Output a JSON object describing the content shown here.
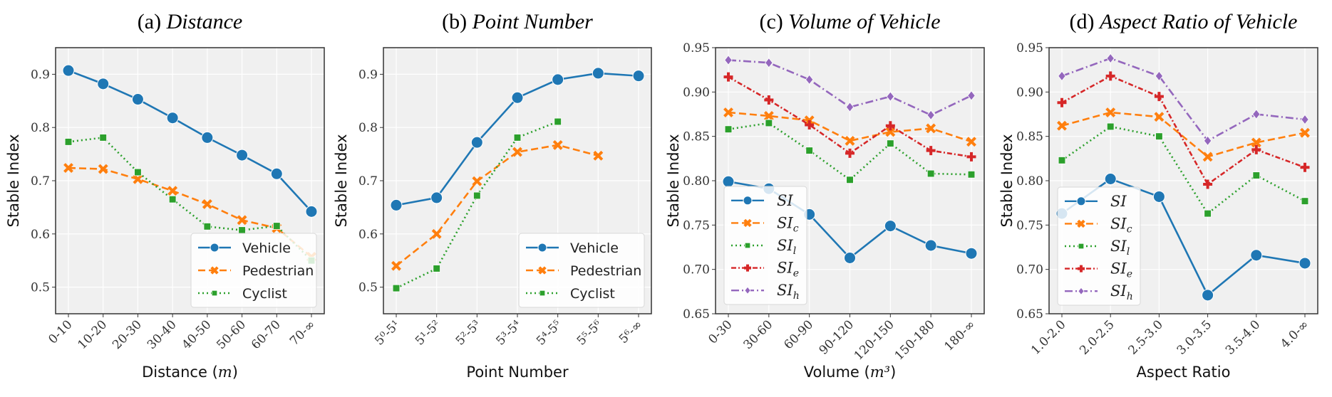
{
  "figure": {
    "ylabel_common": "Stable Index"
  },
  "chart_data": [
    {
      "id": "a",
      "type": "line",
      "title_prefix": "(a)",
      "title_main": "Distance",
      "xlabel": "Distance",
      "xlabel_math": "m",
      "ylabel": "Stable Index",
      "categories": [
        "0-10",
        "10-20",
        "20-30",
        "30-40",
        "40-50",
        "50-60",
        "60-70",
        "70-∞"
      ],
      "ylim": [
        0.45,
        0.95
      ],
      "yticks": [
        0.5,
        0.6,
        0.7,
        0.8,
        0.9
      ],
      "ytick_labels": [
        "0.5",
        "0.6",
        "0.7",
        "0.8",
        "0.9"
      ],
      "grid": true,
      "legend_position": "lower-right",
      "series": [
        {
          "name": "Vehicle",
          "color": "#1f77b4",
          "style": "solid",
          "marker": "circle",
          "values": [
            0.907,
            0.882,
            0.853,
            0.818,
            0.781,
            0.748,
            0.713,
            0.642
          ]
        },
        {
          "name": "Pedestrian",
          "color": "#ff7f0e",
          "style": "dashed",
          "marker": "x",
          "values": [
            0.724,
            0.722,
            0.703,
            0.681,
            0.656,
            0.626,
            0.611,
            0.557
          ]
        },
        {
          "name": "Cyclist",
          "color": "#2ca02c",
          "style": "dotted",
          "marker": "square",
          "values": [
            0.773,
            0.781,
            0.716,
            0.665,
            0.614,
            0.607,
            0.615,
            0.55
          ]
        }
      ]
    },
    {
      "id": "b",
      "type": "line",
      "title_prefix": "(b)",
      "title_main": "Point Number",
      "xlabel": "Point Number",
      "xlabel_math": "",
      "ylabel": "Stable Index",
      "categories": [
        "5⁰-5¹",
        "5¹-5²",
        "5²-5³",
        "5³-5⁴",
        "5⁴-5⁵",
        "5⁵-5⁶",
        "5⁶-∞"
      ],
      "ylim": [
        0.45,
        0.95
      ],
      "yticks": [
        0.5,
        0.6,
        0.7,
        0.8,
        0.9
      ],
      "ytick_labels": [
        "0.5",
        "0.6",
        "0.7",
        "0.8",
        "0.9"
      ],
      "grid": true,
      "legend_position": "lower-right",
      "series": [
        {
          "name": "Vehicle",
          "color": "#1f77b4",
          "style": "solid",
          "marker": "circle",
          "values": [
            0.654,
            0.668,
            0.772,
            0.856,
            0.89,
            0.902,
            0.897
          ]
        },
        {
          "name": "Pedestrian",
          "color": "#ff7f0e",
          "style": "dashed",
          "marker": "x",
          "values": [
            0.54,
            0.6,
            0.699,
            0.754,
            0.767,
            0.747,
            null
          ]
        },
        {
          "name": "Cyclist",
          "color": "#2ca02c",
          "style": "dotted",
          "marker": "square",
          "values": [
            0.498,
            0.535,
            0.672,
            0.781,
            0.811,
            null,
            null
          ]
        }
      ]
    },
    {
      "id": "c",
      "type": "line",
      "title_prefix": "(c)",
      "title_main": "Volume of Vehicle",
      "xlabel": "Volume",
      "xlabel_math": "m³",
      "ylabel": "Stable Index",
      "categories": [
        "0-30",
        "30-60",
        "60-90",
        "90-120",
        "120-150",
        "150-180",
        "180-∞"
      ],
      "ylim": [
        0.65,
        0.95
      ],
      "yticks": [
        0.65,
        0.7,
        0.75,
        0.8,
        0.85,
        0.9,
        0.95
      ],
      "ytick_labels": [
        "0.65",
        "0.70",
        "0.75",
        "0.80",
        "0.85",
        "0.90",
        "0.95"
      ],
      "grid": true,
      "legend_position": "lower-left",
      "series": [
        {
          "name": "SI",
          "sub": "",
          "color": "#1f77b4",
          "style": "solid",
          "marker": "circle",
          "values": [
            0.799,
            0.791,
            0.762,
            0.713,
            0.749,
            0.727,
            0.718
          ]
        },
        {
          "name": "SI",
          "sub": "c",
          "color": "#ff7f0e",
          "style": "dashed",
          "marker": "x",
          "values": [
            0.877,
            0.873,
            0.868,
            0.845,
            0.855,
            0.859,
            0.844
          ]
        },
        {
          "name": "SI",
          "sub": "l",
          "color": "#2ca02c",
          "style": "dotted",
          "marker": "square",
          "values": [
            0.858,
            0.865,
            0.834,
            0.801,
            0.842,
            0.808,
            0.807
          ]
        },
        {
          "name": "SI",
          "sub": "e",
          "color": "#d62728",
          "style": "dashdotdot",
          "marker": "plus",
          "values": [
            0.917,
            0.891,
            0.863,
            0.831,
            0.862,
            0.834,
            0.827
          ]
        },
        {
          "name": "SI",
          "sub": "h",
          "color": "#9467bd",
          "style": "dashdot",
          "marker": "diamond",
          "values": [
            0.936,
            0.933,
            0.914,
            0.883,
            0.895,
            0.874,
            0.896
          ]
        }
      ]
    },
    {
      "id": "d",
      "type": "line",
      "title_prefix": "(d)",
      "title_main": "Aspect Ratio of Vehicle",
      "xlabel": "Aspect Ratio",
      "xlabel_math": "",
      "ylabel": "Stable Index",
      "categories": [
        "1.0-2.0",
        "2.0-2.5",
        "2.5-3.0",
        "3.0-3.5",
        "3.5-4.0",
        "4.0-∞"
      ],
      "ylim": [
        0.65,
        0.95
      ],
      "yticks": [
        0.65,
        0.7,
        0.75,
        0.8,
        0.85,
        0.9,
        0.95
      ],
      "ytick_labels": [
        "0.65",
        "0.70",
        "0.75",
        "0.80",
        "0.85",
        "0.90",
        "0.95"
      ],
      "grid": true,
      "legend_position": "lower-left",
      "series": [
        {
          "name": "SI",
          "sub": "",
          "color": "#1f77b4",
          "style": "solid",
          "marker": "circle",
          "values": [
            0.763,
            0.802,
            0.782,
            0.671,
            0.716,
            0.707
          ]
        },
        {
          "name": "SI",
          "sub": "c",
          "color": "#ff7f0e",
          "style": "dashed",
          "marker": "x",
          "values": [
            0.862,
            0.877,
            0.872,
            0.827,
            0.843,
            0.854
          ]
        },
        {
          "name": "SI",
          "sub": "l",
          "color": "#2ca02c",
          "style": "dotted",
          "marker": "square",
          "values": [
            0.823,
            0.861,
            0.85,
            0.763,
            0.806,
            0.777
          ]
        },
        {
          "name": "SI",
          "sub": "e",
          "color": "#d62728",
          "style": "dashdotdot",
          "marker": "plus",
          "values": [
            0.888,
            0.918,
            0.895,
            0.796,
            0.835,
            0.815
          ]
        },
        {
          "name": "SI",
          "sub": "h",
          "color": "#9467bd",
          "style": "dashdot",
          "marker": "diamond",
          "values": [
            0.918,
            0.938,
            0.918,
            0.845,
            0.875,
            0.869
          ]
        }
      ]
    }
  ]
}
